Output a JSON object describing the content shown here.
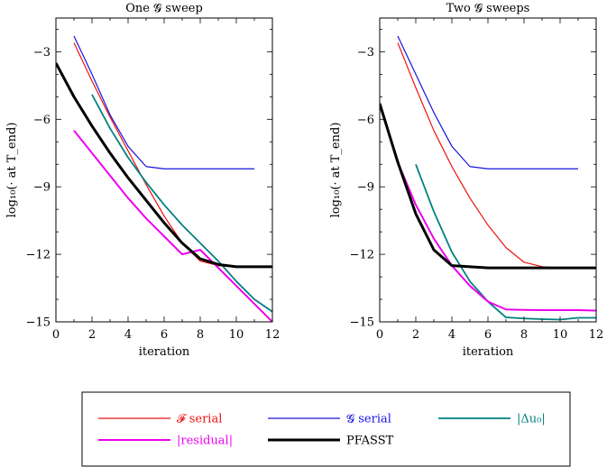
{
  "legend": {
    "placement": "bottom",
    "items": [
      {
        "key": "F",
        "label": "𝓕 serial",
        "color": "#ee1111",
        "width": 1.2
      },
      {
        "key": "G",
        "label": "𝓖 serial",
        "color": "#1414dd",
        "width": 1.2
      },
      {
        "key": "du",
        "label": "|Δu₀|",
        "color": "#008080",
        "width": 1.8
      },
      {
        "key": "res",
        "label": "|residual|",
        "color": "#ee00ee",
        "width": 2.0
      },
      {
        "key": "pf",
        "label": "PFASST",
        "color": "#000000",
        "width": 3.0
      }
    ]
  },
  "chart_data": [
    {
      "type": "line",
      "title": "One 𝓖 sweep",
      "xlabel": "iteration",
      "ylabel": "log₁₀(· at T_end)",
      "xlim": [
        0,
        12
      ],
      "ylim": [
        -15,
        -1.5
      ],
      "xticks": [
        0,
        2,
        4,
        6,
        8,
        10,
        12
      ],
      "yticks": [
        -15,
        -12,
        -9,
        -6,
        -3
      ],
      "series": [
        {
          "name": "𝓕 serial",
          "x": [
            1,
            2,
            3,
            4,
            5,
            6,
            7,
            8,
            9,
            10,
            11,
            12
          ],
          "y": [
            -2.6,
            -4.3,
            -5.9,
            -7.4,
            -8.9,
            -10.3,
            -11.5,
            -12.3,
            -12.5,
            -12.55,
            -12.55,
            -12.55
          ]
        },
        {
          "name": "𝓖 serial",
          "x": [
            1,
            2,
            3,
            4,
            5,
            6,
            7,
            8,
            9,
            10,
            11
          ],
          "y": [
            -2.3,
            -4.0,
            -5.8,
            -7.2,
            -8.1,
            -8.2,
            -8.2,
            -8.2,
            -8.2,
            -8.2,
            -8.2
          ]
        },
        {
          "name": "|Δu₀|",
          "x": [
            2,
            3,
            4,
            5,
            6,
            7,
            8,
            9,
            10,
            11,
            12
          ],
          "y": [
            -4.9,
            -6.4,
            -7.7,
            -8.8,
            -9.8,
            -10.7,
            -11.5,
            -12.3,
            -13.2,
            -14.0,
            -14.55
          ]
        },
        {
          "name": "|residual|",
          "x": [
            1,
            2,
            3,
            4,
            5,
            6,
            7,
            7.5,
            8,
            9,
            10,
            11,
            12
          ],
          "y": [
            -6.5,
            -7.5,
            -8.5,
            -9.5,
            -10.4,
            -11.2,
            -12.0,
            -11.9,
            -11.8,
            -12.6,
            -13.4,
            -14.2,
            -15.0
          ]
        },
        {
          "name": "PFASST",
          "x": [
            0,
            1,
            2,
            3,
            4,
            5,
            6,
            7,
            8,
            9,
            10,
            11,
            12
          ],
          "y": [
            -3.5,
            -5.0,
            -6.3,
            -7.5,
            -8.6,
            -9.6,
            -10.6,
            -11.5,
            -12.2,
            -12.45,
            -12.55,
            -12.55,
            -12.55
          ]
        }
      ]
    },
    {
      "type": "line",
      "title": "Two 𝓖 sweeps",
      "xlabel": "iteration",
      "ylabel": "log₁₀(· at T_end)",
      "xlim": [
        0,
        12
      ],
      "ylim": [
        -15,
        -1.5
      ],
      "xticks": [
        0,
        2,
        4,
        6,
        8,
        10,
        12
      ],
      "yticks": [
        -15,
        -12,
        -9,
        -6,
        -3
      ],
      "series": [
        {
          "name": "𝓕 serial",
          "x": [
            1,
            2,
            3,
            4,
            5,
            6,
            7,
            8,
            9,
            10,
            11,
            12
          ],
          "y": [
            -2.6,
            -4.6,
            -6.5,
            -8.1,
            -9.5,
            -10.7,
            -11.7,
            -12.35,
            -12.55,
            -12.6,
            -12.6,
            -12.6
          ]
        },
        {
          "name": "𝓖 serial",
          "x": [
            1,
            2,
            3,
            4,
            5,
            6,
            7,
            8,
            9,
            10,
            11
          ],
          "y": [
            -2.3,
            -4.0,
            -5.7,
            -7.2,
            -8.1,
            -8.2,
            -8.2,
            -8.2,
            -8.2,
            -8.2,
            -8.2
          ]
        },
        {
          "name": "|Δu₀|",
          "x": [
            2,
            3,
            4,
            5,
            6,
            7,
            8,
            9,
            10,
            11,
            12
          ],
          "y": [
            -8.0,
            -10.1,
            -11.9,
            -13.2,
            -14.1,
            -14.8,
            -14.85,
            -14.88,
            -14.9,
            -14.82,
            -14.82
          ]
        },
        {
          "name": "|residual|",
          "x": [
            1,
            2,
            3,
            4,
            5,
            6,
            7,
            8,
            9,
            10,
            11,
            12
          ],
          "y": [
            -7.9,
            -9.8,
            -11.3,
            -12.5,
            -13.4,
            -14.1,
            -14.45,
            -14.47,
            -14.48,
            -14.48,
            -14.48,
            -14.5
          ]
        },
        {
          "name": "PFASST",
          "x": [
            0,
            1,
            2,
            3,
            4,
            5,
            6,
            7,
            8,
            9,
            10,
            11,
            12
          ],
          "y": [
            -5.3,
            -7.9,
            -10.2,
            -11.8,
            -12.5,
            -12.55,
            -12.6,
            -12.6,
            -12.6,
            -12.6,
            -12.6,
            -12.6,
            -12.6
          ]
        }
      ]
    }
  ]
}
